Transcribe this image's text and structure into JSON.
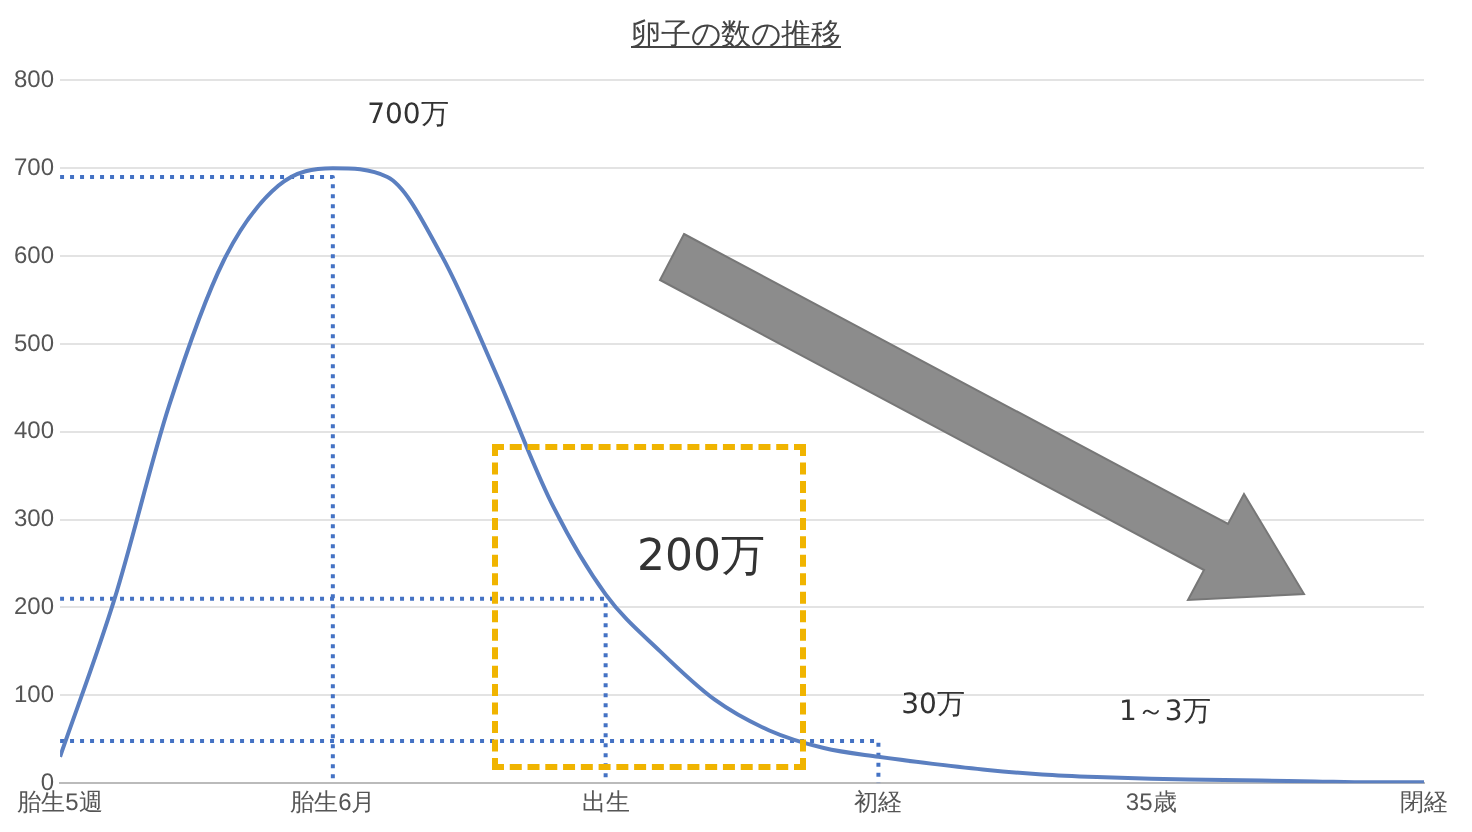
{
  "chart_data": {
    "type": "line",
    "title": "卵子の数の推移",
    "categories": [
      "胎生5週",
      null,
      null,
      null,
      null,
      "胎生6月",
      null,
      null,
      null,
      null,
      "出生",
      null,
      null,
      null,
      null,
      "初経",
      null,
      null,
      null,
      null,
      "35歳",
      null,
      null,
      null,
      null,
      "閉経"
    ],
    "ylim": [
      0,
      800
    ],
    "yticks": [
      0,
      100,
      200,
      300,
      400,
      500,
      600,
      700,
      800
    ],
    "grid": "y",
    "legend": false,
    "marker": "none",
    "series": [
      {
        "color": "#5b7fc0",
        "line_style": "solid",
        "values": [
          30,
          210,
          430,
          595,
          680,
          700,
          690,
          600,
          465,
          320,
          215,
          150,
          95,
          60,
          40,
          30,
          22,
          15,
          10,
          7,
          5,
          4,
          3,
          2,
          1,
          1
        ]
      },
      {
        "color": "#4472c4",
        "line_style": "dotted",
        "x": [
          "胎生5週",
          "胎生6月",
          "胎生6月"
        ],
        "values": [
          690,
          690,
          0
        ]
      },
      {
        "color": "#4472c4",
        "line_style": "dotted",
        "x": [
          "胎生5週",
          "出生",
          "出生"
        ],
        "values": [
          210,
          210,
          0
        ]
      },
      {
        "color": "#4472c4",
        "line_style": "dotted",
        "x": [
          "胎生5週",
          "初経",
          "初経"
        ],
        "values": [
          48,
          48,
          0
        ]
      }
    ],
    "annotations": [
      "700万",
      "200万",
      "30万",
      "1～3万"
    ]
  }
}
